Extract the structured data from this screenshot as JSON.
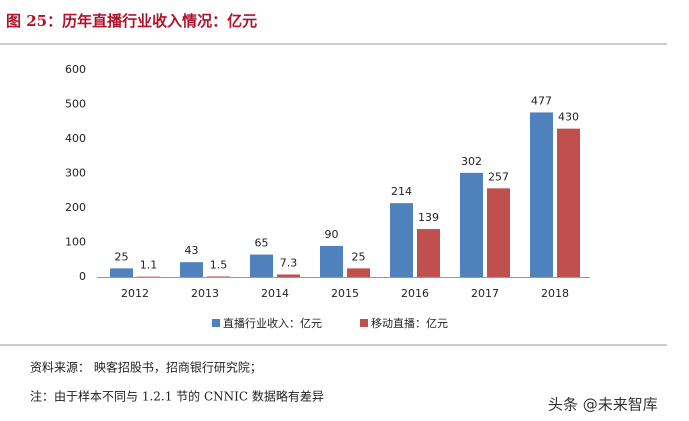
{
  "chart_data": {
    "type": "bar",
    "title": "图 25：历年直播行业收入情况：亿元",
    "categories": [
      "2012",
      "2013",
      "2014",
      "2015",
      "2016",
      "2017",
      "2018"
    ],
    "series": [
      {
        "name": "直播行业收入：亿元",
        "color": "#4f81bd",
        "values": [
          25,
          43,
          65,
          90,
          214,
          302,
          477
        ]
      },
      {
        "name": "移动直播：亿元",
        "color": "#c0504d",
        "values": [
          1.1,
          1.5,
          7.3,
          25,
          139,
          257,
          430
        ]
      }
    ],
    "ylim": [
      0,
      600
    ],
    "yticks": [
      0,
      100,
      200,
      300,
      400,
      500,
      600
    ],
    "grid": false,
    "legend": "bottom"
  },
  "source": "资料来源： 映客招股书，招商银行研究院；",
  "note": "注：由于样本不同与 1.2.1 节的 CNNIC 数据略有差异",
  "watermark": "头条 @未来智库"
}
